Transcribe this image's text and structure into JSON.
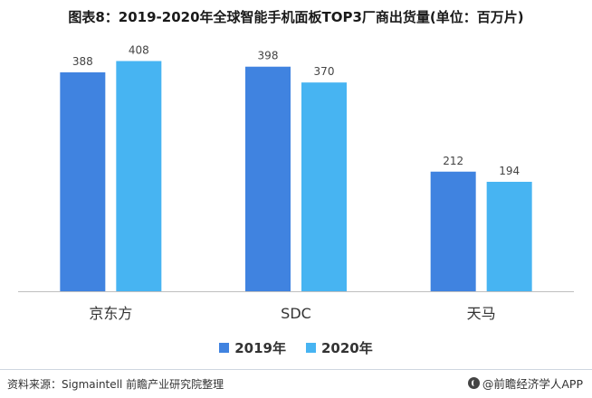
{
  "title": "图表8：2019-2020年全球智能手机面板TOP3厂商出货量(单位：百万片)",
  "chart_data": {
    "type": "bar",
    "categories": [
      "京东方",
      "SDC",
      "天马"
    ],
    "series": [
      {
        "name": "2019年",
        "values": [
          388,
          398,
          212
        ],
        "color": "#4083e0"
      },
      {
        "name": "2020年",
        "values": [
          408,
          370,
          194
        ],
        "color": "#47b4f2"
      }
    ],
    "ylim": [
      0,
      420
    ],
    "grid": false,
    "legend": "bottom"
  },
  "legend": {
    "items": [
      {
        "label": "2019年",
        "color": "#4083e0"
      },
      {
        "label": "2020年",
        "color": "#47b4f2"
      }
    ]
  },
  "footer": {
    "source": "资料来源：Sigmaintell 前瞻产业研究院整理",
    "brand": "@前瞻经济学人APP"
  }
}
